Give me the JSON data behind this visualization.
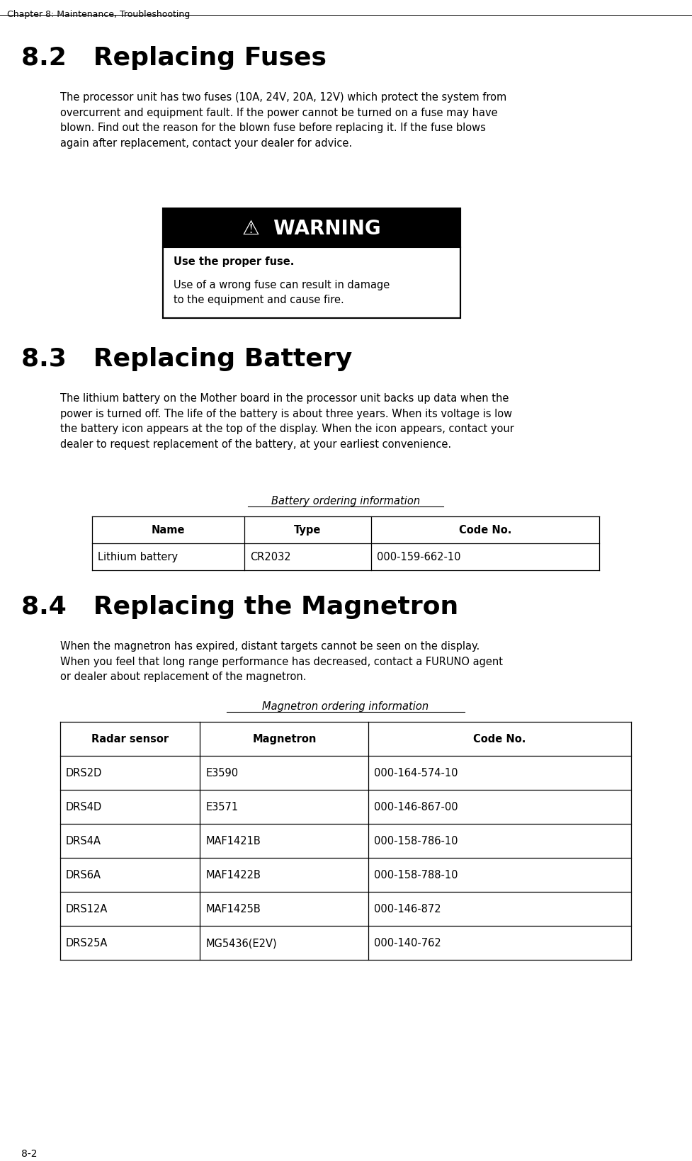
{
  "bg_color": "#ffffff",
  "page_header": "Chapter 8: Maintenance, Troubleshooting",
  "page_footer": "8-2",
  "section_82_title": "8.2   Replacing Fuses",
  "section_82_body": "The processor unit has two fuses (10A, 24V, 20A, 12V) which protect the system from\novercurrent and equipment fault. If the power cannot be turned on a fuse may have\nblown. Find out the reason for the blown fuse before replacing it. If the fuse blows\nagain after replacement, contact your dealer for advice.",
  "warning_title": "⚠  WARNING",
  "warning_bold": "Use the proper fuse.",
  "warning_body": "Use of a wrong fuse can result in damage\nto the equipment and cause fire.",
  "section_83_title": "8.3   Replacing Battery",
  "section_83_body": "The lithium battery on the Mother board in the processor unit backs up data when the\npower is turned off. The life of the battery is about three years. When its voltage is low\nthe battery icon appears at the top of the display. When the icon appears, contact your\ndealer to request replacement of the battery, at your earliest convenience.",
  "battery_table_title": "Battery ordering information",
  "battery_table_headers": [
    "Name",
    "Type",
    "Code No."
  ],
  "battery_table_rows": [
    [
      "Lithium battery",
      "CR2032",
      "000-159-662-10"
    ]
  ],
  "section_84_title": "8.4   Replacing the Magnetron",
  "section_84_body": "When the magnetron has expired, distant targets cannot be seen on the display.\nWhen you feel that long range performance has decreased, contact a FURUNO agent\nor dealer about replacement of the magnetron.",
  "magnetron_table_title": "Magnetron ordering information",
  "magnetron_table_headers": [
    "Radar sensor",
    "Magnetron",
    "Code No."
  ],
  "magnetron_table_rows": [
    [
      "DRS2D",
      "E3590",
      "000-164-574-10"
    ],
    [
      "DRS4D",
      "E3571",
      "000-146-867-00"
    ],
    [
      "DRS4A",
      "MAF1421B",
      "000-158-786-10"
    ],
    [
      "DRS6A",
      "MAF1422B",
      "000-158-788-10"
    ],
    [
      "DRS12A",
      "MAF1425B",
      "000-146-872"
    ],
    [
      "DRS25A",
      "MG5436(E2V)",
      "000-140-762"
    ]
  ]
}
